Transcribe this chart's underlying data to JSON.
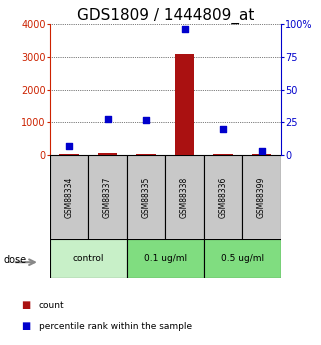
{
  "title": "GDS1809 / 1444809_at",
  "samples": [
    "GSM88334",
    "GSM88337",
    "GSM88335",
    "GSM88338",
    "GSM88336",
    "GSM88399"
  ],
  "count_values": [
    50,
    55,
    48,
    3100,
    52,
    50
  ],
  "percentile_values": [
    7,
    28,
    27,
    96,
    20,
    3
  ],
  "left_ylim": [
    0,
    4000
  ],
  "right_ylim": [
    0,
    100
  ],
  "left_yticks": [
    0,
    1000,
    2000,
    3000,
    4000
  ],
  "right_yticks": [
    0,
    25,
    50,
    75,
    100
  ],
  "right_yticklabels": [
    "0",
    "25",
    "50",
    "75",
    "100%"
  ],
  "bar_color": "#aa1111",
  "dot_color": "#0000cc",
  "bar_width": 0.5,
  "title_fontsize": 11,
  "tick_fontsize": 7,
  "label_color_left": "#cc2200",
  "label_color_right": "#0000cc",
  "sample_box_color": "#c8c8c8",
  "dose_colors": [
    "#c8f0c8",
    "#80dd80",
    "#80dd80"
  ],
  "dose_labels": [
    "control",
    "0.1 ug/ml",
    "0.5 ug/ml"
  ],
  "dose_starts": [
    0,
    2,
    4
  ],
  "dose_ends": [
    2,
    4,
    6
  ],
  "legend_count_color": "#aa1111",
  "legend_pct_color": "#0000cc"
}
